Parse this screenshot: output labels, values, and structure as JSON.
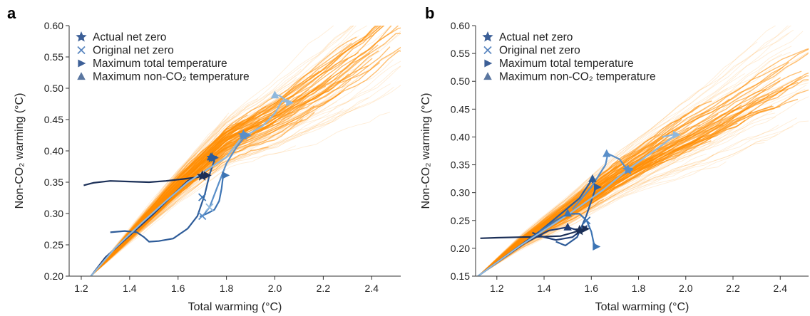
{
  "chart_data": [
    {
      "type": "line",
      "panel_label": "a",
      "xlabel": "Total warming (°C)",
      "ylabel": "Non-CO₂ warming (°C)",
      "xlim": [
        1.15,
        2.52
      ],
      "ylim": [
        0.2,
        0.6
      ],
      "xticks": [
        1.2,
        1.4,
        1.6,
        1.8,
        2.0,
        2.2,
        2.4
      ],
      "yticks": [
        0.2,
        0.25,
        0.3,
        0.35,
        0.4,
        0.45,
        0.5,
        0.55,
        0.6
      ],
      "xtick_labels": [
        "1.2",
        "1.4",
        "1.6",
        "1.8",
        "2.0",
        "2.2",
        "2.4"
      ],
      "ytick_labels": [
        "0.20",
        "0.25",
        "0.30",
        "0.35",
        "0.40",
        "0.45",
        "0.50",
        "0.55",
        "0.60"
      ],
      "legend_position": "top-left",
      "legend": [
        "Actual net zero",
        "Original net zero",
        "Maximum total temperature",
        "Maximum non-CO₂ temperature"
      ],
      "background": {
        "name": "ensemble",
        "color": "#ff8c00",
        "center": [
          [
            1.24,
            0.2
          ],
          [
            1.4,
            0.265
          ],
          [
            1.6,
            0.345
          ],
          [
            1.8,
            0.415
          ],
          [
            2.0,
            0.455
          ],
          [
            2.2,
            0.505
          ],
          [
            2.4,
            0.56
          ],
          [
            2.52,
            0.6
          ]
        ]
      },
      "series": [
        {
          "color": "#1b2f57",
          "points": [
            [
              1.21,
              0.345
            ],
            [
              1.25,
              0.349
            ],
            [
              1.32,
              0.352
            ],
            [
              1.4,
              0.351
            ],
            [
              1.48,
              0.35
            ],
            [
              1.55,
              0.352
            ],
            [
              1.62,
              0.355
            ],
            [
              1.68,
              0.358
            ],
            [
              1.7,
              0.36
            ],
            [
              1.72,
              0.362
            ]
          ],
          "markers": {
            "actual_net_zero": [
              1.7,
              0.36
            ],
            "max_total": [
              1.72,
              0.361
            ]
          }
        },
        {
          "color": "#233f77",
          "points": [
            [
              1.24,
              0.2
            ],
            [
              1.3,
              0.23
            ],
            [
              1.4,
              0.265
            ],
            [
              1.5,
              0.3
            ],
            [
              1.58,
              0.33
            ],
            [
              1.64,
              0.352
            ],
            [
              1.7,
              0.362
            ]
          ],
          "markers": {}
        },
        {
          "color": "#2e5c99",
          "points": [
            [
              1.32,
              0.27
            ],
            [
              1.38,
              0.272
            ],
            [
              1.43,
              0.27
            ],
            [
              1.46,
              0.262
            ],
            [
              1.48,
              0.255
            ],
            [
              1.52,
              0.256
            ],
            [
              1.58,
              0.26
            ],
            [
              1.64,
              0.276
            ],
            [
              1.68,
              0.296
            ],
            [
              1.71,
              0.33
            ],
            [
              1.73,
              0.362
            ],
            [
              1.75,
              0.385
            ],
            [
              1.75,
              0.39
            ]
          ],
          "markers": {
            "actual_net_zero": [
              1.74,
              0.389
            ],
            "max_total": [
              1.75,
              0.389
            ],
            "max_non_co2": [
              1.735,
              0.39
            ]
          }
        },
        {
          "color": "#3c74b4",
          "points": [
            [
              1.69,
              0.295
            ],
            [
              1.72,
              0.3
            ],
            [
              1.75,
              0.306
            ],
            [
              1.77,
              0.32
            ],
            [
              1.78,
              0.34
            ],
            [
              1.785,
              0.356
            ],
            [
              1.79,
              0.362
            ]
          ],
          "markers": {
            "original_net_zero": [
              1.7,
              0.326
            ],
            "max_total": [
              1.795,
              0.361
            ]
          }
        },
        {
          "color": "#5a8fc9",
          "points": [
            [
              1.7,
              0.295
            ],
            [
              1.72,
              0.305
            ],
            [
              1.73,
              0.31
            ],
            [
              1.76,
              0.34
            ],
            [
              1.8,
              0.38
            ],
            [
              1.84,
              0.405
            ],
            [
              1.87,
              0.42
            ],
            [
              1.89,
              0.425
            ]
          ],
          "markers": {
            "original_net_zero": [
              1.7,
              0.296
            ],
            "actual_net_zero": [
              1.87,
              0.425
            ],
            "max_total": [
              1.885,
              0.425
            ],
            "max_non_co2": [
              1.87,
              0.427
            ]
          }
        },
        {
          "color": "#8fb8dd",
          "points": [
            [
              1.24,
              0.2
            ],
            [
              1.34,
              0.245
            ],
            [
              1.45,
              0.285
            ],
            [
              1.55,
              0.32
            ],
            [
              1.64,
              0.35
            ],
            [
              1.72,
              0.37
            ],
            [
              1.8,
              0.39
            ],
            [
              1.86,
              0.42
            ],
            [
              1.95,
              0.44
            ],
            [
              2.0,
              0.46
            ],
            [
              2.03,
              0.48
            ],
            [
              2.06,
              0.477
            ],
            [
              2.02,
              0.488
            ],
            [
              2.0,
              0.49
            ]
          ],
          "markers": {
            "original_net_zero": [
              1.73,
              0.31
            ],
            "max_total": [
              2.06,
              0.477
            ],
            "max_non_co2": [
              2.0,
              0.489
            ]
          }
        }
      ]
    },
    {
      "type": "line",
      "panel_label": "b",
      "xlabel": "Total warming (°C)",
      "ylabel": "Non-CO₂ warming (°C)",
      "xlim": [
        1.11,
        2.52
      ],
      "ylim": [
        0.15,
        0.6
      ],
      "xticks": [
        1.2,
        1.4,
        1.6,
        1.8,
        2.0,
        2.2,
        2.4
      ],
      "yticks": [
        0.15,
        0.2,
        0.25,
        0.3,
        0.35,
        0.4,
        0.45,
        0.5,
        0.55,
        0.6
      ],
      "xtick_labels": [
        "1.2",
        "1.4",
        "1.6",
        "1.8",
        "2.0",
        "2.2",
        "2.4"
      ],
      "ytick_labels": [
        "0.15",
        "0.20",
        "0.25",
        "0.30",
        "0.35",
        "0.40",
        "0.45",
        "0.50",
        "0.55",
        "0.60"
      ],
      "legend_position": "top-left",
      "legend": [
        "Actual net zero",
        "Original net zero",
        "Maximum total temperature",
        "Maximum non-CO₂ temperature"
      ],
      "background": {
        "name": "ensemble",
        "color": "#ff8c00",
        "center": [
          [
            1.12,
            0.15
          ],
          [
            1.3,
            0.21
          ],
          [
            1.5,
            0.265
          ],
          [
            1.7,
            0.325
          ],
          [
            1.9,
            0.375
          ],
          [
            2.1,
            0.42
          ],
          [
            2.3,
            0.47
          ],
          [
            2.52,
            0.52
          ]
        ]
      },
      "series": [
        {
          "color": "#1b2f57",
          "points": [
            [
              1.13,
              0.218
            ],
            [
              1.2,
              0.219
            ],
            [
              1.3,
              0.22
            ],
            [
              1.4,
              0.221
            ],
            [
              1.47,
              0.222
            ],
            [
              1.52,
              0.228
            ],
            [
              1.55,
              0.232
            ],
            [
              1.57,
              0.235
            ]
          ],
          "markers": {
            "actual_net_zero": [
              1.55,
              0.232
            ],
            "max_total": [
              1.575,
              0.235
            ]
          }
        },
        {
          "color": "#233f77",
          "points": [
            [
              1.12,
              0.15
            ],
            [
              1.22,
              0.18
            ],
            [
              1.32,
              0.21
            ],
            [
              1.42,
              0.232
            ],
            [
              1.5,
              0.238
            ],
            [
              1.56,
              0.23
            ],
            [
              1.58,
              0.24
            ],
            [
              1.52,
              0.22
            ],
            [
              1.45,
              0.215
            ],
            [
              1.4,
              0.22
            ],
            [
              1.35,
              0.228
            ]
          ],
          "markers": {
            "max_non_co2": [
              1.5,
              0.238
            ]
          }
        },
        {
          "color": "#2e5c99",
          "points": [
            [
              1.12,
              0.15
            ],
            [
              1.25,
              0.19
            ],
            [
              1.38,
              0.23
            ],
            [
              1.48,
              0.265
            ],
            [
              1.55,
              0.29
            ],
            [
              1.6,
              0.322
            ],
            [
              1.62,
              0.31
            ],
            [
              1.58,
              0.26
            ],
            [
              1.54,
              0.22
            ],
            [
              1.49,
              0.205
            ],
            [
              1.45,
              0.212
            ]
          ],
          "markers": {
            "max_non_co2": [
              1.605,
              0.325
            ],
            "max_total": [
              1.625,
              0.31
            ]
          }
        },
        {
          "color": "#3c74b4",
          "points": [
            [
              1.38,
              0.23
            ],
            [
              1.45,
              0.25
            ],
            [
              1.5,
              0.262
            ],
            [
              1.55,
              0.262
            ],
            [
              1.58,
              0.25
            ],
            [
              1.6,
              0.23
            ],
            [
              1.61,
              0.21
            ],
            [
              1.62,
              0.203
            ]
          ],
          "markers": {
            "max_non_co2": [
              1.5,
              0.263
            ],
            "original_net_zero": [
              1.58,
              0.25
            ],
            "max_total": [
              1.62,
              0.203
            ]
          }
        },
        {
          "color": "#5a8fc9",
          "points": [
            [
              1.52,
              0.27
            ],
            [
              1.6,
              0.31
            ],
            [
              1.66,
              0.35
            ],
            [
              1.67,
              0.37
            ],
            [
              1.72,
              0.36
            ],
            [
              1.75,
              0.342
            ],
            [
              1.77,
              0.34
            ]
          ],
          "markers": {
            "max_non_co2": [
              1.665,
              0.37
            ],
            "actual_net_zero": [
              1.755,
              0.341
            ],
            "max_total": [
              1.76,
              0.341
            ]
          }
        },
        {
          "color": "#8fb8dd",
          "points": [
            [
              1.12,
              0.15
            ],
            [
              1.3,
              0.205
            ],
            [
              1.5,
              0.26
            ],
            [
              1.65,
              0.305
            ],
            [
              1.75,
              0.34
            ],
            [
              1.85,
              0.37
            ],
            [
              1.93,
              0.395
            ],
            [
              1.96,
              0.405
            ],
            [
              1.9,
              0.4
            ]
          ],
          "markers": {
            "max_total": [
              1.96,
              0.404
            ]
          }
        }
      ]
    }
  ]
}
